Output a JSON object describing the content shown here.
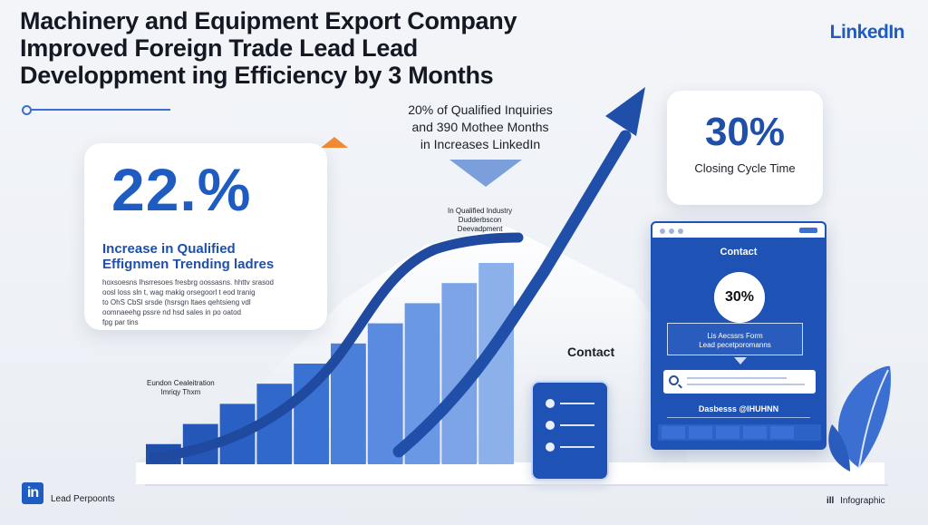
{
  "header": {
    "title_line1": "Machinery and Equipment Export Company",
    "title_line2": "Improved Foreign Trade Lead Lead",
    "title_line3": "Developpment ing Efficiency by 3 Months",
    "brand": "LinkedIn"
  },
  "left_card": {
    "stat": "22.%",
    "subtitle1": "Increase in Qualified",
    "subtitle2": "Effignmen Trending ladres",
    "body": [
      "hoxsoesns Ihsrresoes  fresbrg oossasns. hhttv srasod",
      "oosl loss sln t, wag makig orsegoorl t eod tranig",
      "to OhS CbSl srsde (hsrsgn ltaes qehtsieng vdl",
      "oomnaeehg pssre nd hsd sales in po oatod",
      "fpg par tins"
    ]
  },
  "middle": {
    "line1": "20% of Qualified Inquiries",
    "line2": "and 390 Mothee Months",
    "line3": "in Increases LinkedIn",
    "annot_line1": "In Qualified Industry",
    "annot_line2": "Dudderbscon",
    "annot_line3": "Deevadpment",
    "low_label_line1": "Eundon Cealeitration",
    "low_label_line2": "Imriqy Thxm"
  },
  "right_card": {
    "stat": "30%",
    "label": "Closing Cycle Time"
  },
  "contact_label": "Contact",
  "browser": {
    "heading": "Contact",
    "circle": "30%",
    "form_line1": "Lis  Aecssrs Form",
    "form_line2": "Lead pecetporomanns",
    "footer": "Dasbesss @IHUHNN"
  },
  "footer": {
    "logo": "in",
    "left_text": "Lead Perpoonts",
    "right_icon": "ill",
    "right_text": "Infographic"
  },
  "chart_data": {
    "type": "bar",
    "values": [
      1,
      2,
      3,
      4,
      5,
      6,
      7,
      8,
      9,
      10
    ],
    "colors": [
      "#1f4fa8",
      "#2457b8",
      "#2a5fc3",
      "#3168cc",
      "#3a72d4",
      "#4b80da",
      "#5a8be0",
      "#6b98e4",
      "#7ca4e6",
      "#8bb0ea"
    ]
  },
  "colors": {
    "accent": "#1f5cc2",
    "dark_blue": "#1f4fa8",
    "orange": "#f08a34"
  }
}
